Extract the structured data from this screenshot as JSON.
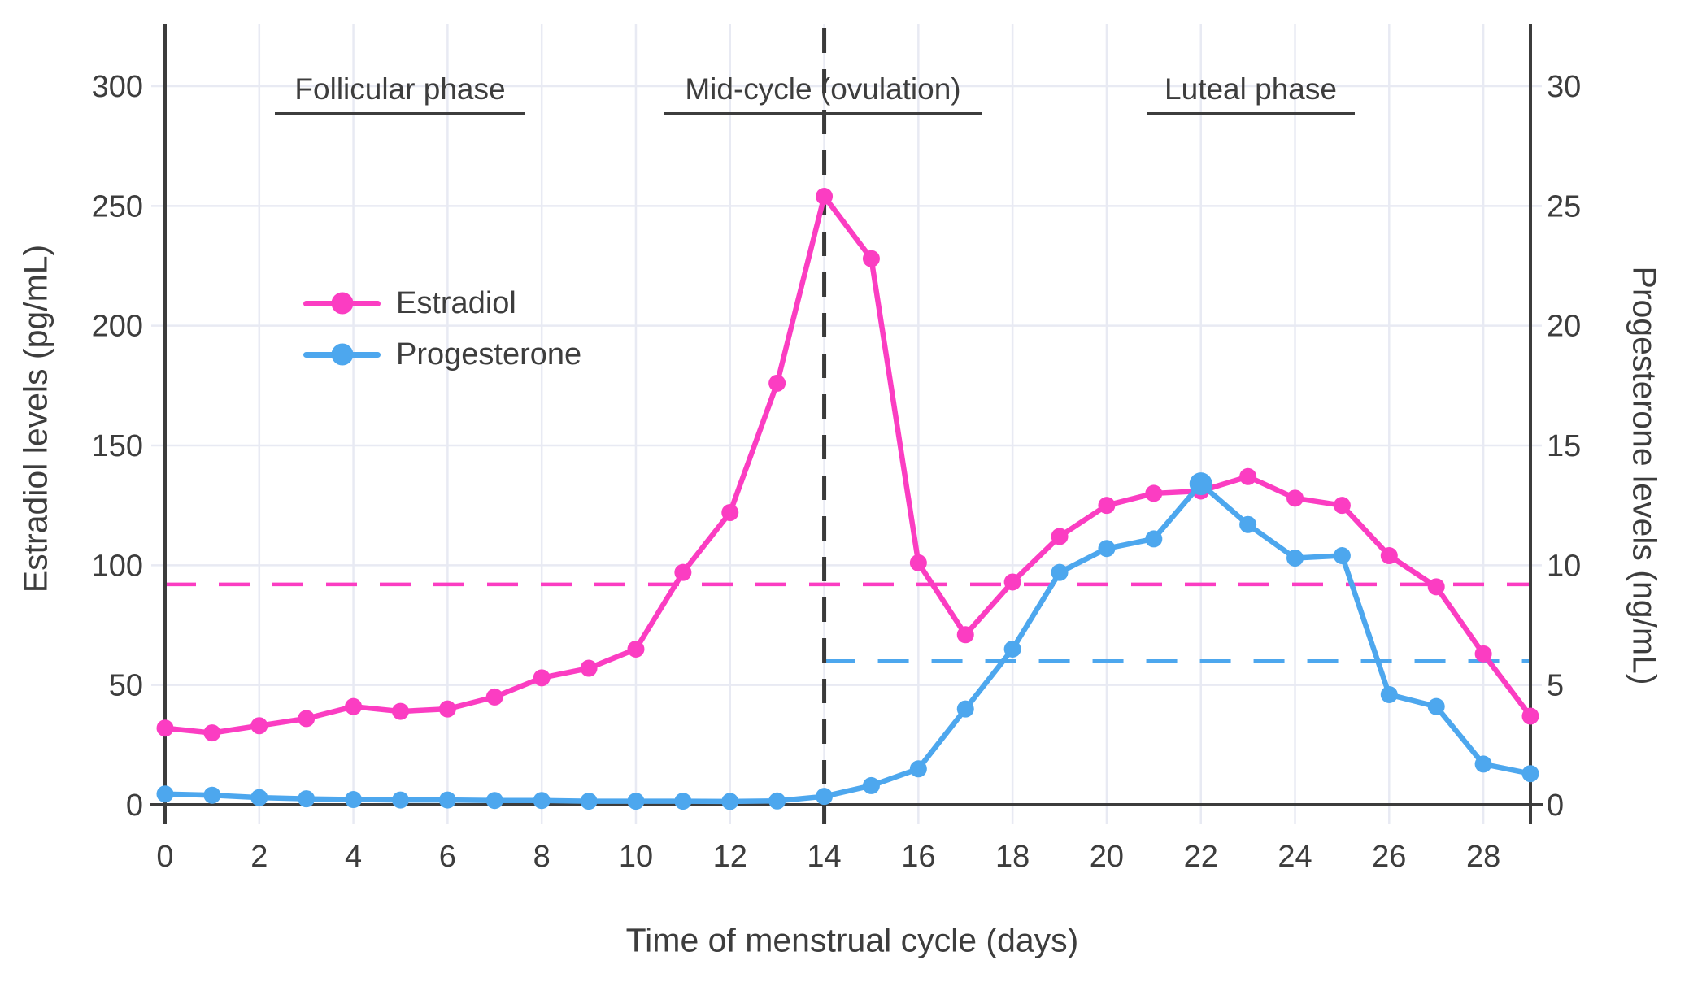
{
  "figure": {
    "x_axis_title": "Time of menstrual cycle (days)",
    "y_left_axis_title": "Estradiol levels (pg/mL)",
    "y_right_axis_title": "Progesterone levels (ng/mL)"
  },
  "colors": {
    "estradiol": "#fb3dc2",
    "progesterone": "#4da7ee",
    "text": "#3d3d3d",
    "axis": "#3c3c3c",
    "grid": "#e8eaf3",
    "ovulation_line": "#3a3a3a",
    "background": "#ffffff"
  },
  "chart_data": {
    "type": "line",
    "x": [
      0,
      1,
      2,
      3,
      4,
      5,
      6,
      7,
      8,
      9,
      10,
      11,
      12,
      13,
      14,
      15,
      16,
      17,
      18,
      19,
      20,
      21,
      22,
      23,
      24,
      25,
      26,
      27,
      28,
      29
    ],
    "x_ticks": [
      0,
      2,
      4,
      6,
      8,
      10,
      12,
      14,
      16,
      18,
      20,
      22,
      24,
      26,
      28
    ],
    "xlabel": "Time of menstrual cycle (days)",
    "y_left": {
      "label": "Estradiol levels (pg/mL)",
      "min": 0,
      "max": 300,
      "ticks": [
        0,
        50,
        100,
        150,
        200,
        250,
        300
      ]
    },
    "y_right": {
      "label": "Progesterone levels (ng/mL)",
      "min": 0,
      "max": 30,
      "ticks": [
        0,
        5,
        10,
        15,
        20,
        25,
        30
      ]
    },
    "grid": true,
    "legend_position": "upper-left-inside",
    "series": [
      {
        "name": "Estradiol",
        "axis": "left",
        "unit": "pg/mL",
        "color": "#fb3dc2",
        "values": [
          32,
          30,
          33,
          36,
          41,
          39,
          40,
          45,
          53,
          57,
          65,
          97,
          122,
          176,
          254,
          228,
          101,
          71,
          93,
          112,
          125,
          130,
          131,
          137,
          128,
          125,
          104,
          91,
          63,
          37
        ]
      },
      {
        "name": "Progesterone",
        "axis": "right",
        "unit": "ng/mL",
        "color": "#4da7ee",
        "values": [
          0.45,
          0.4,
          0.3,
          0.25,
          0.22,
          0.2,
          0.2,
          0.18,
          0.18,
          0.15,
          0.15,
          0.15,
          0.14,
          0.16,
          0.35,
          0.8,
          1.5,
          4.0,
          6.5,
          9.7,
          10.7,
          11.1,
          13.4,
          11.7,
          10.3,
          10.4,
          4.6,
          4.1,
          1.7,
          1.3
        ]
      }
    ],
    "reference_lines": [
      {
        "series": "Estradiol",
        "axis": "left",
        "value": 92,
        "unit": "pg/mL",
        "style": "dashed",
        "color": "#fb3dc2",
        "from_day": 0,
        "to_day": 29
      },
      {
        "series": "Progesterone",
        "axis": "right",
        "value": 6,
        "unit": "ng/mL",
        "style": "dashed",
        "color": "#4da7ee",
        "from_day": 14,
        "to_day": 29
      }
    ],
    "vertical_line": {
      "day": 14,
      "style": "dashed",
      "color": "#3a3a3a"
    },
    "annotations": [
      {
        "label": "Follicular phase",
        "center_day": 5.0,
        "underline_from_day": 2.3,
        "underline_to_day": 7.6
      },
      {
        "label": "Mid-cycle (ovulation)",
        "center_day": 14.0,
        "underline_from_day": 10.6,
        "underline_to_day": 17.3
      },
      {
        "label": "Luteal phase",
        "center_day": 23.1,
        "underline_from_day": 20.9,
        "underline_to_day": 25.3
      }
    ]
  }
}
